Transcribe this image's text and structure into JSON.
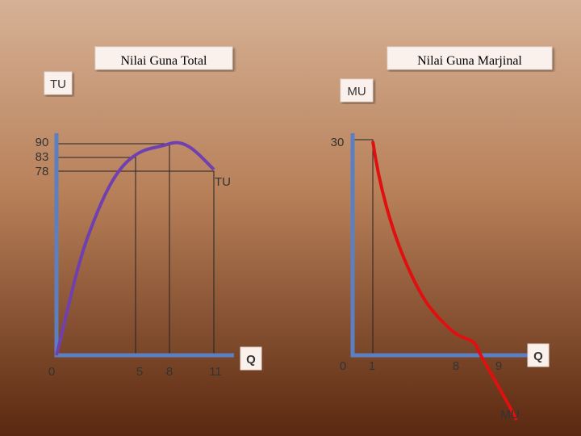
{
  "left": {
    "title": "Nilai Guna Total",
    "axis_label": "TU",
    "y_labels": [
      "90",
      "83",
      "78"
    ],
    "curve_label": "TU",
    "x_labels": [
      "0",
      "5",
      "8",
      "11"
    ],
    "x_axis_label": "Q"
  },
  "right": {
    "title": "Nilai Guna Marjinal",
    "axis_label": "MU",
    "y_labels": [
      "30"
    ],
    "curve_label": "MU",
    "x_labels": [
      "0",
      "1",
      "8",
      "9"
    ],
    "x_axis_label": "Q"
  }
}
